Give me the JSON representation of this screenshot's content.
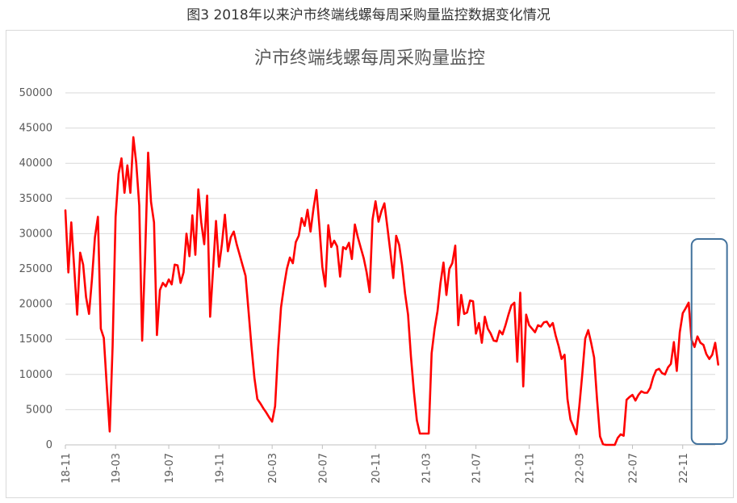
{
  "figure_caption": "图3  2018年以来沪市终端线螺每周采购量监控数据变化情况",
  "chart_data": {
    "type": "line",
    "title": "沪市终端线螺每周采购量监控",
    "xlabel": "",
    "ylabel": "",
    "ylim": [
      0,
      50000
    ],
    "yticks": [
      0,
      5000,
      10000,
      15000,
      20000,
      25000,
      30000,
      35000,
      40000,
      45000,
      50000
    ],
    "xlim": [
      0,
      220
    ],
    "xticks": [
      {
        "x": 0,
        "label": "18-11"
      },
      {
        "x": 17,
        "label": "19-03"
      },
      {
        "x": 35,
        "label": "19-07"
      },
      {
        "x": 52,
        "label": "19-11"
      },
      {
        "x": 70,
        "label": "20-03"
      },
      {
        "x": 87,
        "label": "20-07"
      },
      {
        "x": 105,
        "label": "20-11"
      },
      {
        "x": 122,
        "label": "21-03"
      },
      {
        "x": 139,
        "label": "21-07"
      },
      {
        "x": 157,
        "label": "21-11"
      },
      {
        "x": 174,
        "label": "22-03"
      },
      {
        "x": 192,
        "label": "22-07"
      },
      {
        "x": 209,
        "label": "22-11"
      }
    ],
    "line_color": "#ff0000",
    "grid": true,
    "highlight_box": {
      "x_start": 212,
      "x_end": 224,
      "color": "#41719c"
    },
    "series": [
      {
        "name": "",
        "points": [
          [
            0,
            33300
          ],
          [
            1,
            24500
          ],
          [
            2,
            31600
          ],
          [
            3,
            25000
          ],
          [
            4,
            18500
          ],
          [
            5,
            27300
          ],
          [
            6,
            25600
          ],
          [
            7,
            21000
          ],
          [
            8,
            18600
          ],
          [
            9,
            23500
          ],
          [
            10,
            29500
          ],
          [
            11,
            32400
          ],
          [
            12,
            16500
          ],
          [
            13,
            15200
          ],
          [
            14,
            8500
          ],
          [
            15,
            1900
          ],
          [
            16,
            14000
          ],
          [
            17,
            32400
          ],
          [
            18,
            38500
          ],
          [
            19,
            40700
          ],
          [
            20,
            35800
          ],
          [
            21,
            39700
          ],
          [
            22,
            35800
          ],
          [
            23,
            43700
          ],
          [
            24,
            40000
          ],
          [
            25,
            34000
          ],
          [
            26,
            14800
          ],
          [
            27,
            27000
          ],
          [
            28,
            41500
          ],
          [
            29,
            34500
          ],
          [
            30,
            31600
          ],
          [
            31,
            15600
          ],
          [
            32,
            22000
          ],
          [
            33,
            23000
          ],
          [
            34,
            22500
          ],
          [
            35,
            23500
          ],
          [
            36,
            22800
          ],
          [
            37,
            25600
          ],
          [
            38,
            25500
          ],
          [
            39,
            23000
          ],
          [
            40,
            24500
          ],
          [
            41,
            30000
          ],
          [
            42,
            26800
          ],
          [
            43,
            32600
          ],
          [
            44,
            27000
          ],
          [
            45,
            36300
          ],
          [
            46,
            31600
          ],
          [
            47,
            28500
          ],
          [
            48,
            35400
          ],
          [
            49,
            18200
          ],
          [
            50,
            25000
          ],
          [
            51,
            31800
          ],
          [
            52,
            25300
          ],
          [
            53,
            28500
          ],
          [
            54,
            32700
          ],
          [
            55,
            27500
          ],
          [
            56,
            29500
          ],
          [
            57,
            30300
          ],
          [
            58,
            28500
          ],
          [
            59,
            27000
          ],
          [
            60,
            25500
          ],
          [
            61,
            24000
          ],
          [
            62,
            19000
          ],
          [
            63,
            14000
          ],
          [
            64,
            9500
          ],
          [
            65,
            6500
          ],
          [
            66,
            5900
          ],
          [
            67,
            5200
          ],
          [
            68,
            4600
          ],
          [
            69,
            3900
          ],
          [
            70,
            3300
          ],
          [
            71,
            5500
          ],
          [
            72,
            13500
          ],
          [
            73,
            19500
          ],
          [
            74,
            22500
          ],
          [
            75,
            25000
          ],
          [
            76,
            26600
          ],
          [
            77,
            25800
          ],
          [
            78,
            28800
          ],
          [
            79,
            29700
          ],
          [
            80,
            32200
          ],
          [
            81,
            31100
          ],
          [
            82,
            33400
          ],
          [
            83,
            30300
          ],
          [
            84,
            33600
          ],
          [
            85,
            36200
          ],
          [
            86,
            31000
          ],
          [
            87,
            25300
          ],
          [
            88,
            22500
          ],
          [
            89,
            31200
          ],
          [
            90,
            28100
          ],
          [
            91,
            29000
          ],
          [
            92,
            28200
          ],
          [
            93,
            23900
          ],
          [
            94,
            28100
          ],
          [
            95,
            27800
          ],
          [
            96,
            28700
          ],
          [
            97,
            26400
          ],
          [
            98,
            31300
          ],
          [
            99,
            29500
          ],
          [
            100,
            28000
          ],
          [
            101,
            26500
          ],
          [
            102,
            24500
          ],
          [
            103,
            21700
          ],
          [
            104,
            32000
          ],
          [
            105,
            34600
          ],
          [
            106,
            31700
          ],
          [
            107,
            33200
          ],
          [
            108,
            34300
          ],
          [
            109,
            31000
          ],
          [
            110,
            27500
          ],
          [
            111,
            23700
          ],
          [
            112,
            29700
          ],
          [
            113,
            28400
          ],
          [
            114,
            25500
          ],
          [
            115,
            21500
          ],
          [
            116,
            18500
          ],
          [
            117,
            12500
          ],
          [
            118,
            7500
          ],
          [
            119,
            3500
          ],
          [
            120,
            1600
          ],
          [
            121,
            1600
          ],
          [
            122,
            1600
          ],
          [
            123,
            1600
          ],
          [
            124,
            13000
          ],
          [
            125,
            16500
          ],
          [
            126,
            19000
          ],
          [
            127,
            23000
          ],
          [
            128,
            25900
          ],
          [
            129,
            21300
          ],
          [
            130,
            25000
          ],
          [
            131,
            25800
          ],
          [
            132,
            28300
          ],
          [
            133,
            17000
          ],
          [
            134,
            21300
          ],
          [
            135,
            18600
          ],
          [
            136,
            18800
          ],
          [
            137,
            20500
          ],
          [
            138,
            20400
          ],
          [
            139,
            15800
          ],
          [
            140,
            17300
          ],
          [
            141,
            14500
          ],
          [
            142,
            18200
          ],
          [
            143,
            16500
          ],
          [
            144,
            15800
          ],
          [
            145,
            14800
          ],
          [
            146,
            14700
          ],
          [
            147,
            16200
          ],
          [
            148,
            15700
          ],
          [
            149,
            17000
          ],
          [
            150,
            18500
          ],
          [
            151,
            19800
          ],
          [
            152,
            20200
          ],
          [
            153,
            11800
          ],
          [
            154,
            21600
          ],
          [
            155,
            8300
          ],
          [
            156,
            18500
          ],
          [
            157,
            17000
          ],
          [
            158,
            16500
          ],
          [
            159,
            16000
          ],
          [
            160,
            17000
          ],
          [
            161,
            16800
          ],
          [
            162,
            17400
          ],
          [
            163,
            17500
          ],
          [
            164,
            16800
          ],
          [
            165,
            17300
          ],
          [
            166,
            15500
          ],
          [
            167,
            14000
          ],
          [
            168,
            12200
          ],
          [
            169,
            12800
          ],
          [
            170,
            6500
          ],
          [
            171,
            3600
          ],
          [
            172,
            2600
          ],
          [
            173,
            1500
          ],
          [
            174,
            5500
          ],
          [
            175,
            10000
          ],
          [
            176,
            15100
          ],
          [
            177,
            16300
          ],
          [
            178,
            14500
          ],
          [
            179,
            12400
          ],
          [
            180,
            6500
          ],
          [
            181,
            1200
          ],
          [
            182,
            100
          ],
          [
            183,
            0
          ],
          [
            184,
            0
          ],
          [
            185,
            0
          ],
          [
            186,
            0
          ],
          [
            187,
            1000
          ],
          [
            188,
            1500
          ],
          [
            189,
            1300
          ],
          [
            190,
            6400
          ],
          [
            191,
            6800
          ],
          [
            192,
            7100
          ],
          [
            193,
            6300
          ],
          [
            194,
            7100
          ],
          [
            195,
            7600
          ],
          [
            196,
            7400
          ],
          [
            197,
            7400
          ],
          [
            198,
            8100
          ],
          [
            199,
            9600
          ],
          [
            200,
            10600
          ],
          [
            201,
            10800
          ],
          [
            202,
            10200
          ],
          [
            203,
            10000
          ],
          [
            204,
            11000
          ],
          [
            205,
            11500
          ],
          [
            206,
            14600
          ],
          [
            207,
            10500
          ],
          [
            208,
            16000
          ],
          [
            209,
            18700
          ],
          [
            210,
            19400
          ],
          [
            211,
            20200
          ],
          [
            212,
            14900
          ],
          [
            213,
            13900
          ],
          [
            214,
            15400
          ],
          [
            215,
            14500
          ],
          [
            216,
            14200
          ],
          [
            217,
            12900
          ],
          [
            218,
            12200
          ],
          [
            219,
            12800
          ],
          [
            220,
            14500
          ],
          [
            221,
            11400
          ]
        ]
      }
    ]
  }
}
